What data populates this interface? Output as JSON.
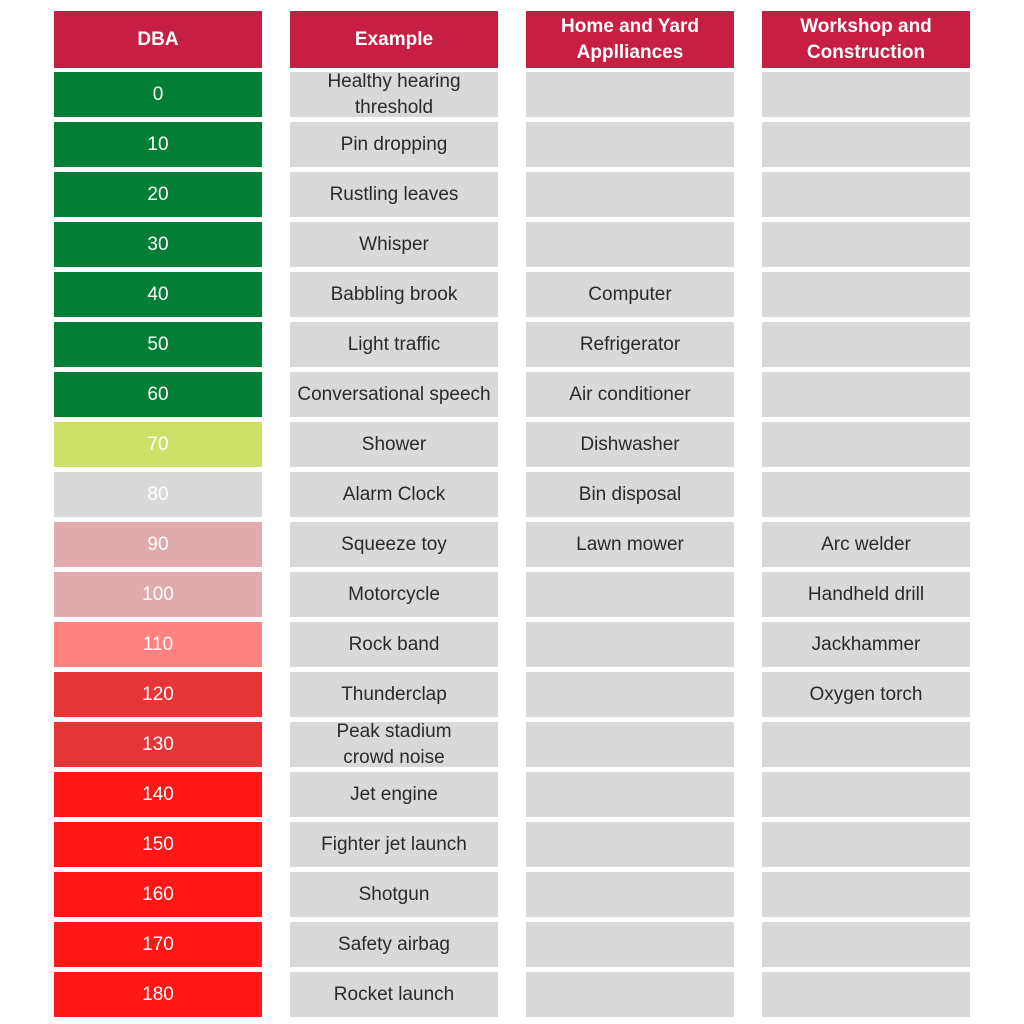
{
  "headers": {
    "dba": "DBA",
    "example": "Example",
    "home": "Home and Yard\nApplliances",
    "work": "Workshop and\nConstruction"
  },
  "rows": [
    {
      "dba": "0",
      "example": "Healthy hearing\nthreshold",
      "home": "",
      "work": "",
      "color": "#027f35"
    },
    {
      "dba": "10",
      "example": "Pin dropping",
      "home": "",
      "work": "",
      "color": "#027f35"
    },
    {
      "dba": "20",
      "example": "Rustling leaves",
      "home": "",
      "work": "",
      "color": "#027f35"
    },
    {
      "dba": "30",
      "example": "Whisper",
      "home": "",
      "work": "",
      "color": "#027f35"
    },
    {
      "dba": "40",
      "example": "Babbling brook",
      "home": "Computer",
      "work": "",
      "color": "#027f35"
    },
    {
      "dba": "50",
      "example": "Light traffic",
      "home": "Refrigerator",
      "work": "",
      "color": "#027f35"
    },
    {
      "dba": "60",
      "example": "Conversational speech",
      "home": "Air conditioner",
      "work": "",
      "color": "#027f35"
    },
    {
      "dba": "70",
      "example": "Shower",
      "home": "Dishwasher",
      "work": "",
      "color": "#cde168"
    },
    {
      "dba": "80",
      "example": "Alarm Clock",
      "home": "Bin disposal",
      "work": "",
      "color": "#d9d9d9"
    },
    {
      "dba": "90",
      "example": "Squeeze toy",
      "home": "Lawn mower",
      "work": "Arc welder",
      "color": "#e0aaae"
    },
    {
      "dba": "100",
      "example": "Motorcycle",
      "home": "",
      "work": "Handheld drill",
      "color": "#e0aaae"
    },
    {
      "dba": "110",
      "example": "Rock band",
      "home": "",
      "work": "Jackhammer",
      "color": "#ff8280"
    },
    {
      "dba": "120",
      "example": "Thunderclap",
      "home": "",
      "work": "Oxygen torch",
      "color": "#e63535"
    },
    {
      "dba": "130",
      "example": "Peak stadium\ncrowd noise",
      "home": "",
      "work": "",
      "color": "#e63535"
    },
    {
      "dba": "140",
      "example": "Jet engine",
      "home": "",
      "work": "",
      "color": "#ff1616"
    },
    {
      "dba": "150",
      "example": "Fighter jet launch",
      "home": "",
      "work": "",
      "color": "#ff1616"
    },
    {
      "dba": "160",
      "example": "Shotgun",
      "home": "",
      "work": "",
      "color": "#ff1616"
    },
    {
      "dba": "170",
      "example": "Safety airbag",
      "home": "",
      "work": "",
      "color": "#ff1616"
    },
    {
      "dba": "180",
      "example": "Rocket launch",
      "home": "",
      "work": "",
      "color": "#ff1616"
    }
  ],
  "colors": {
    "header": "#c71f41",
    "cell": "#d9d9d9"
  }
}
